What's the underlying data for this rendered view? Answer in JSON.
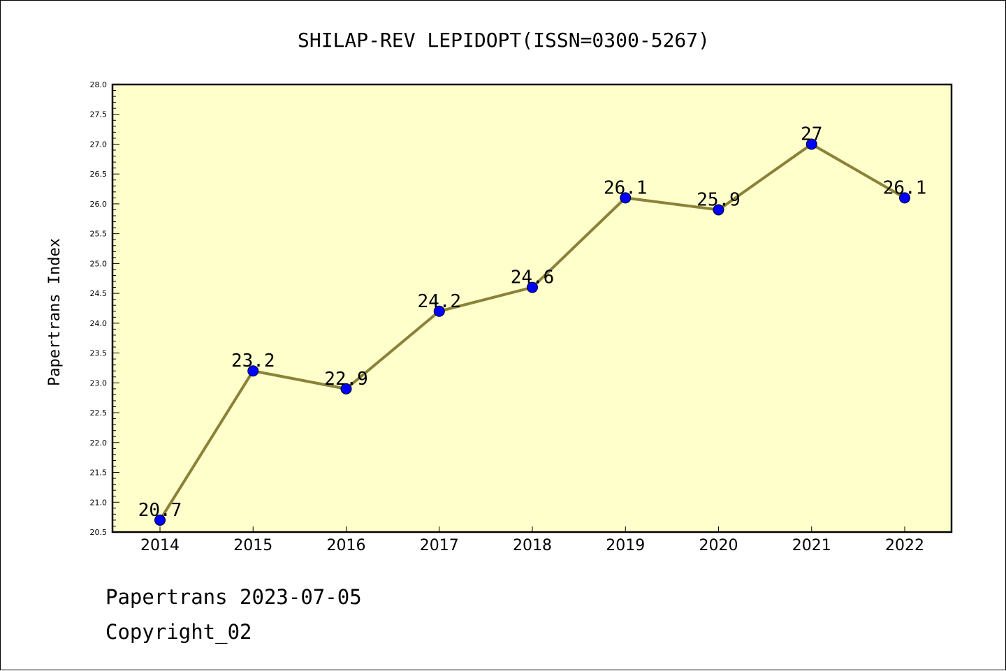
{
  "chart_data": {
    "type": "line",
    "title": "SHILAP-REV LEPIDOPT(ISSN=0300-5267)",
    "ylabel": "Papertrans Index",
    "xlabel": "",
    "categories": [
      "2014",
      "2015",
      "2016",
      "2017",
      "2018",
      "2019",
      "2020",
      "2021",
      "2022"
    ],
    "values": [
      20.7,
      23.2,
      22.9,
      24.2,
      24.6,
      26.1,
      25.9,
      27,
      26.1
    ],
    "data_labels": [
      "20.7",
      "23.2",
      "22.9",
      "24.2",
      "24.6",
      "26.1",
      "25.9",
      "27",
      "26.1"
    ],
    "ylim": [
      20.5,
      28.0
    ],
    "yticks": [
      "20.5",
      "21.0",
      "21.5",
      "22.0",
      "22.5",
      "23.0",
      "23.5",
      "24.0",
      "24.5",
      "25.0",
      "25.5",
      "26.0",
      "26.5",
      "27.0",
      "27.5",
      "28.0"
    ],
    "grid": false,
    "legend": "none",
    "colors": {
      "plot_background": "#ffffcc",
      "line": "#8b8238",
      "marker": "#0000ff"
    }
  },
  "footer": {
    "line1": "Papertrans 2023-07-05",
    "line2": "Copyright_02"
  }
}
